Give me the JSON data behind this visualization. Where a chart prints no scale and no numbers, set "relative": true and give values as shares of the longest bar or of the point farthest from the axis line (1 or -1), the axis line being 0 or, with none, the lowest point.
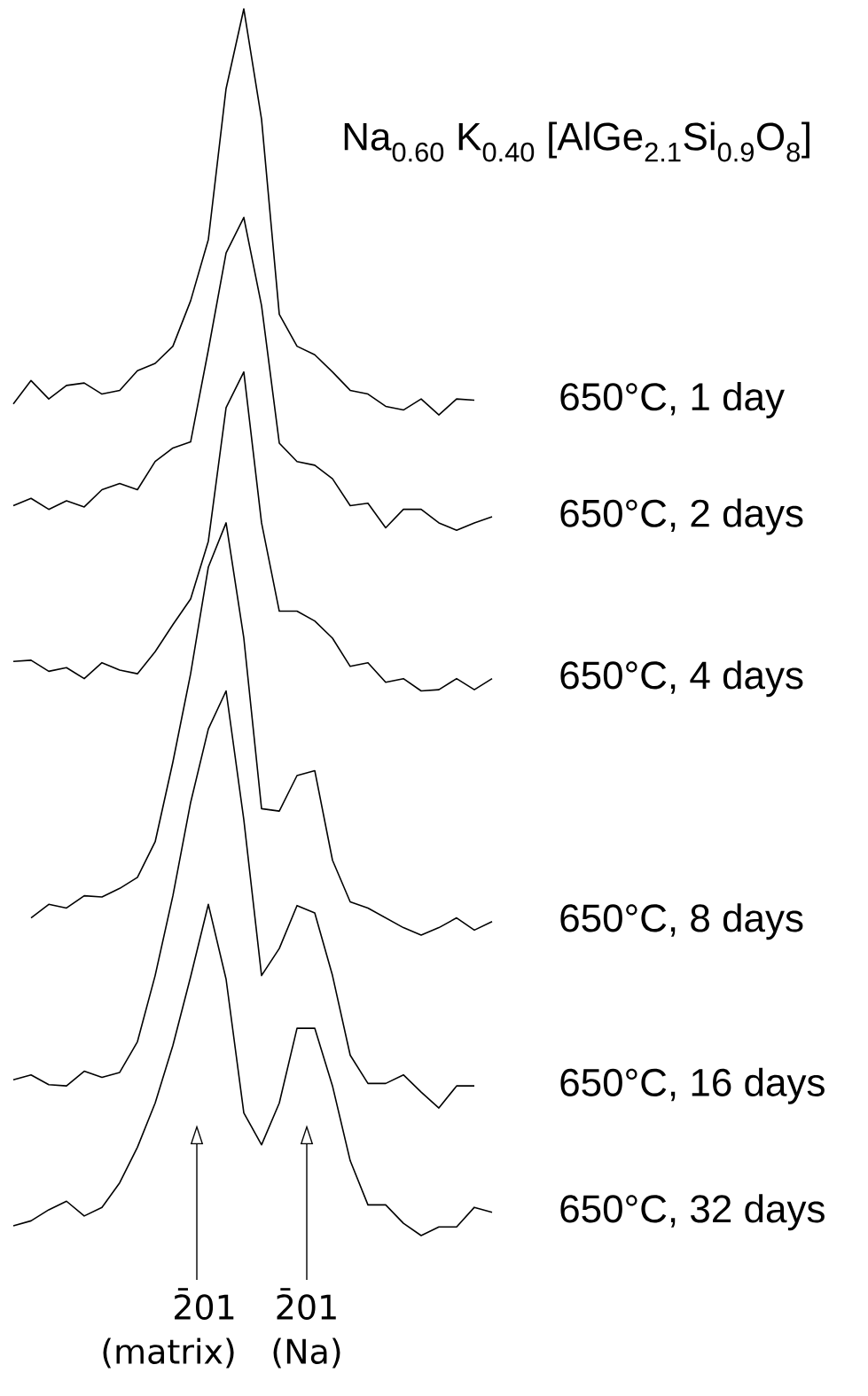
{
  "chart_data": {
    "type": "line",
    "relative": true,
    "title": "Na$_{0.60}$ K$_{0.40}$ [AlGe$_{2.1}$Si$_{0.9}$O$_{8}$]",
    "categories": [
      null,
      null,
      null,
      null,
      null,
      null,
      null,
      null,
      null,
      null,
      null,
      null,
      null,
      null,
      null,
      null,
      null,
      null,
      null,
      null,
      null,
      null,
      null,
      null,
      null,
      null,
      null,
      null
    ],
    "series": [
      {
        "name": "650°C, 1 day",
        "color": "#000000",
        "values": [
          0.678,
          0.697,
          0.682,
          0.693,
          0.695,
          0.686,
          0.689,
          0.705,
          0.711,
          0.725,
          0.762,
          0.812,
          0.935,
          1,
          0.91,
          0.751,
          0.725,
          0.718,
          0.704,
          0.689,
          0.686,
          0.676,
          0.673,
          0.682,
          0.669,
          0.682,
          0.681,
          null
        ]
      },
      {
        "name": "650°C, 2 days",
        "color": "#000000",
        "values": [
          0.595,
          0.601,
          0.592,
          0.599,
          0.594,
          0.608,
          0.613,
          0.608,
          0.631,
          0.642,
          0.647,
          0.722,
          0.801,
          0.83,
          0.758,
          0.646,
          0.631,
          0.628,
          0.617,
          0.595,
          0.597,
          0.577,
          0.592,
          0.592,
          0.581,
          0.575,
          0.581,
          0.586
        ]
      },
      {
        "name": "650°C, 4 days",
        "color": "#000000",
        "values": [
          0.468,
          0.469,
          0.46,
          0.463,
          0.454,
          0.467,
          0.461,
          0.458,
          0.476,
          0.498,
          0.519,
          0.566,
          0.675,
          0.704,
          0.581,
          0.509,
          0.509,
          0.501,
          0.487,
          0.464,
          0.467,
          0.451,
          0.454,
          0.444,
          0.445,
          0.454,
          0.445,
          0.454
        ]
      },
      {
        "name": "650°C, 8 days",
        "color": "#000000",
        "values": [
          null,
          0.259,
          0.27,
          0.267,
          0.277,
          0.276,
          0.283,
          0.292,
          0.321,
          0.386,
          0.458,
          0.545,
          0.581,
          0.487,
          0.348,
          0.346,
          0.375,
          0.379,
          0.306,
          0.272,
          0.267,
          0.259,
          0.251,
          0.245,
          0.251,
          0.259,
          0.249,
          0.256
        ]
      },
      {
        "name": "650°C, 16 days",
        "color": "#000000",
        "values": [
          0.127,
          0.131,
          0.123,
          0.122,
          0.134,
          0.129,
          0.133,
          0.158,
          0.212,
          0.277,
          0.353,
          0.413,
          0.444,
          0.339,
          0.212,
          0.234,
          0.269,
          0.263,
          0.212,
          0.147,
          0.124,
          0.124,
          0.131,
          0.117,
          0.104,
          0.122,
          0.122,
          null
        ]
      },
      {
        "name": "650°C, 32 days",
        "color": "#000000",
        "values": [
          0.008,
          0.012,
          0.021,
          0.028,
          0.016,
          0.023,
          0.043,
          0.072,
          0.108,
          0.155,
          0.211,
          0.27,
          0.209,
          0.1,
          0.074,
          0.108,
          0.169,
          0.169,
          0.122,
          0.061,
          0.025,
          0.025,
          0.01,
          0,
          0.007,
          0.007,
          0.023,
          0.019
        ]
      }
    ],
    "annotations": [
      "2̄01 (matrix)",
      "2̄01 (Na)"
    ]
  }
}
